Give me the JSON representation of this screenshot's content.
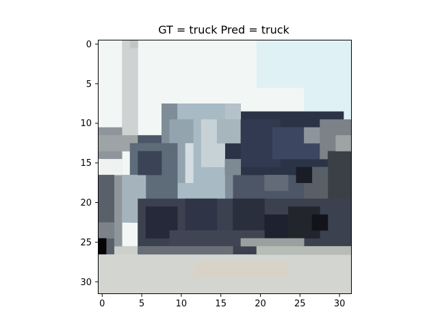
{
  "title": "GT = truck Pred = truck",
  "image": {
    "grid_size": 32,
    "subject": "truck",
    "palette": {
      "sky": "#f2f7f6",
      "sky_blue": "#dff1f5",
      "pole": "#cfd2d2",
      "truck_light": "#a8bac4",
      "truck_mid": "#6f7d89",
      "truck_dark": "#2b3347",
      "wheel": "#1b1d26",
      "ground": "#d3d6d0",
      "ground_warm": "#d8d3c6",
      "black": "#050505"
    }
  },
  "axes": {
    "x_ticks": [
      "0",
      "5",
      "10",
      "15",
      "20",
      "25",
      "30"
    ],
    "y_ticks": [
      "0",
      "5",
      "10",
      "15",
      "20",
      "25",
      "30"
    ]
  }
}
